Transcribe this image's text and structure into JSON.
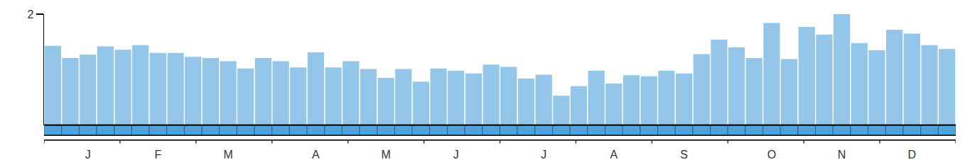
{
  "chart_data": {
    "type": "bar",
    "categories": [
      null,
      null,
      "J",
      null,
      null,
      null,
      "F",
      null,
      null,
      null,
      "M",
      null,
      null,
      null,
      null,
      "A",
      null,
      null,
      null,
      "M",
      null,
      null,
      null,
      "J",
      null,
      null,
      null,
      null,
      "J",
      null,
      null,
      null,
      "A",
      null,
      null,
      null,
      "S",
      null,
      null,
      null,
      null,
      "O",
      null,
      null,
      null,
      "N",
      null,
      null,
      null,
      "D",
      null,
      null
    ],
    "values": [
      1.43,
      1.21,
      1.27,
      1.42,
      1.36,
      1.44,
      1.3,
      1.3,
      1.23,
      1.21,
      1.15,
      1.02,
      1.21,
      1.15,
      1.04,
      1.31,
      1.04,
      1.15,
      1.01,
      0.85,
      1.01,
      0.78,
      1.02,
      0.98,
      0.93,
      1.09,
      1.05,
      0.84,
      0.91,
      0.53,
      0.7,
      0.98,
      0.75,
      0.9,
      0.88,
      0.98,
      0.93,
      1.28,
      1.54,
      1.4,
      1.21,
      1.84,
      1.19,
      1.77,
      1.63,
      2.0,
      1.48,
      1.35,
      1.72,
      1.65,
      1.44,
      1.37
    ],
    "color": "#93c6e8",
    "ylim": [
      0,
      2
    ],
    "yticks": [
      2
    ],
    "grid": false
  }
}
